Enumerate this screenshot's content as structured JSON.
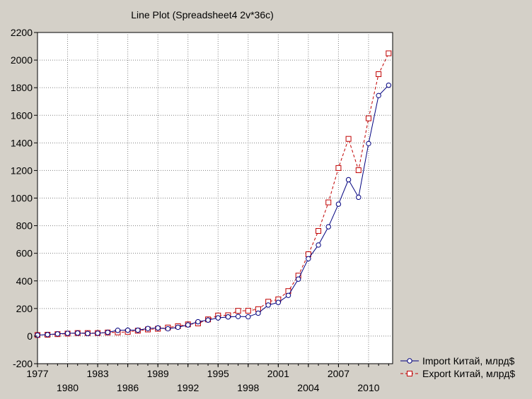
{
  "chart_data": {
    "type": "line",
    "title": "Line Plot (Spreadsheet4 2v*36c)",
    "xlabel": "",
    "ylabel": "",
    "ylim": [
      -200,
      2200
    ],
    "yticks": [
      -200,
      0,
      200,
      400,
      600,
      800,
      1000,
      1200,
      1400,
      1600,
      1800,
      2000,
      2200
    ],
    "xlim": [
      1977,
      2012.4
    ],
    "xticks_top": [
      1977,
      1983,
      1989,
      1995,
      2001,
      2007
    ],
    "xticks_bottom": [
      1980,
      1986,
      1992,
      1998,
      2004,
      2010
    ],
    "grid": true,
    "legend_position": "bottom-right",
    "x": [
      1977,
      1978,
      1979,
      1980,
      1981,
      1982,
      1983,
      1984,
      1985,
      1986,
      1987,
      1988,
      1989,
      1990,
      1991,
      1992,
      1993,
      1994,
      1995,
      1996,
      1997,
      1998,
      1999,
      2000,
      2001,
      2002,
      2003,
      2004,
      2005,
      2006,
      2007,
      2008,
      2009,
      2010,
      2011,
      2012
    ],
    "series": [
      {
        "name": "Import Китай, млрд$",
        "color": "#00007f",
        "marker": "circle",
        "line_style": "solid",
        "values": [
          7,
          11,
          16,
          20,
          22,
          19,
          21,
          27,
          42,
          43,
          43,
          55,
          59,
          53,
          64,
          81,
          104,
          116,
          132,
          139,
          142,
          140,
          166,
          225,
          244,
          295,
          413,
          561,
          660,
          792,
          956,
          1133,
          1006,
          1395,
          1743,
          1818
        ]
      },
      {
        "name": "Export Китай, млрд$",
        "color": "#c00000",
        "marker": "square",
        "line_style": "dashed",
        "values": [
          8,
          10,
          14,
          18,
          22,
          22,
          22,
          26,
          27,
          31,
          39,
          48,
          53,
          62,
          72,
          85,
          92,
          121,
          149,
          151,
          183,
          184,
          195,
          249,
          266,
          326,
          438,
          593,
          762,
          969,
          1218,
          1429,
          1202,
          1578,
          1898,
          2049
        ]
      }
    ]
  }
}
